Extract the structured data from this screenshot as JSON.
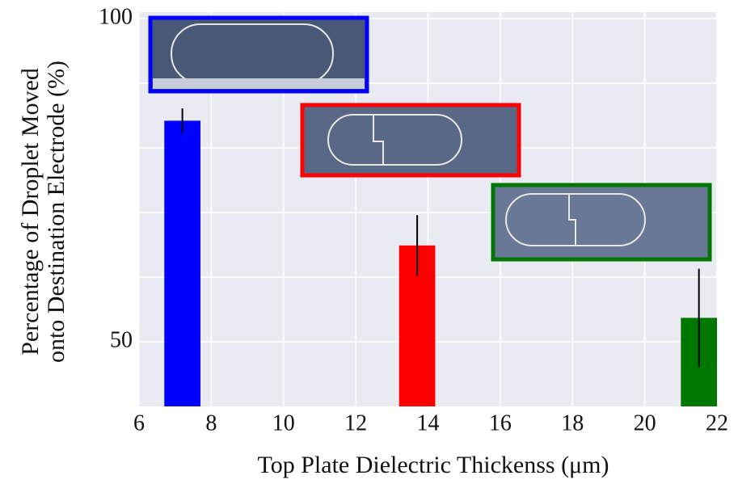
{
  "chart_data": {
    "type": "bar",
    "x_label": "Top Plate Dielectric Thickenss (μm)",
    "y_label": [
      "Percentage of Droplet Moved",
      "onto Destination Electrode (%)"
    ],
    "x": [
      7.2,
      13.7,
      21.5
    ],
    "values": [
      84.2,
      64.9,
      53.7
    ],
    "errors": [
      1.9,
      4.7,
      7.6
    ],
    "colors": [
      "#0000ff",
      "#ff0000",
      "#007700"
    ],
    "bar_width": 1,
    "xlim": [
      6,
      22
    ],
    "xticks": [
      6,
      8,
      10,
      12,
      14,
      16,
      18,
      20,
      22
    ],
    "ylim": [
      40,
      101
    ],
    "yticks": [
      50,
      100
    ],
    "minor_yticks": [
      60,
      70,
      80,
      90
    ],
    "grid": true
  }
}
